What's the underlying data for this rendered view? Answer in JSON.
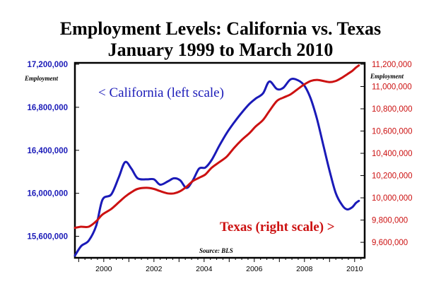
{
  "chart_data": {
    "type": "line",
    "title": "Employment Levels: California vs. Texas",
    "subtitle": "January 1999 to March 2010",
    "source": "Source: BLS",
    "y_left": {
      "label": "Employment",
      "range": [
        15420000,
        17200000
      ],
      "ticks": [
        15600000,
        16000000,
        16400000,
        16800000,
        17200000
      ],
      "tick_labels": [
        "15,600,000",
        "16,000,000",
        "16,400,000",
        "16,800,000",
        "17,200,000"
      ]
    },
    "y_right": {
      "label": "Employment",
      "range": [
        9480000,
        11200000
      ],
      "ticks": [
        9600000,
        9800000,
        10000000,
        10200000,
        10400000,
        10600000,
        10800000,
        11000000,
        11200000
      ],
      "tick_labels": [
        "9,600,000",
        "9,800,000",
        "10,000,000",
        "10,200,000",
        "10,400,000",
        "10,600,000",
        "10,800,000",
        "11,000,000",
        "11,200,000"
      ]
    },
    "x_axis": {
      "range": [
        1998.85,
        2010.4
      ],
      "ticks": [
        2000,
        2002,
        2004,
        2006,
        2008,
        2010
      ],
      "tick_labels": [
        "2000",
        "2002",
        "2004",
        "2006",
        "2008",
        "2010"
      ]
    },
    "annotations": {
      "california": "< California (left scale)",
      "texas": "Texas (right scale) >"
    },
    "grid": false,
    "series": [
      {
        "name": "California",
        "axis": "left",
        "color": "#1a1ab8",
        "x": [
          1998.85,
          1999.1,
          1999.4,
          1999.7,
          1999.95,
          2000.3,
          2000.6,
          2000.85,
          2001.1,
          2001.35,
          2001.7,
          2002.0,
          2002.25,
          2002.55,
          2002.8,
          2003.05,
          2003.3,
          2003.55,
          2003.8,
          2004.05,
          2004.3,
          2004.6,
          2004.9,
          2005.2,
          2005.5,
          2005.8,
          2006.05,
          2006.35,
          2006.6,
          2006.9,
          2007.15,
          2007.45,
          2007.75,
          2008.0,
          2008.25,
          2008.5,
          2008.75,
          2009.0,
          2009.25,
          2009.5,
          2009.7,
          2009.9,
          2010.05,
          2010.17
        ],
        "values": [
          15420000,
          15510000,
          15560000,
          15700000,
          15940000,
          15990000,
          16150000,
          16290000,
          16230000,
          16140000,
          16130000,
          16130000,
          16080000,
          16110000,
          16140000,
          16120000,
          16050000,
          16120000,
          16230000,
          16240000,
          16310000,
          16440000,
          16560000,
          16660000,
          16750000,
          16830000,
          16880000,
          16930000,
          17040000,
          16970000,
          16980000,
          17060000,
          17050000,
          17000000,
          16880000,
          16690000,
          16450000,
          16210000,
          16000000,
          15890000,
          15850000,
          15870000,
          15910000,
          15930000
        ]
      },
      {
        "name": "Texas",
        "axis": "right",
        "color": "#cc1111",
        "x": [
          1998.85,
          1999.1,
          1999.4,
          1999.7,
          1999.95,
          2000.3,
          2000.6,
          2000.85,
          2001.1,
          2001.35,
          2001.7,
          2002.0,
          2002.25,
          2002.55,
          2002.8,
          2003.05,
          2003.3,
          2003.55,
          2003.8,
          2004.05,
          2004.3,
          2004.6,
          2004.9,
          2005.2,
          2005.5,
          2005.8,
          2006.05,
          2006.35,
          2006.6,
          2006.9,
          2007.15,
          2007.45,
          2007.75,
          2008.0,
          2008.25,
          2008.5,
          2008.75,
          2009.0,
          2009.25,
          2009.5,
          2009.7,
          2009.9,
          2010.05,
          2010.17
        ],
        "values": [
          9730000,
          9740000,
          9740000,
          9790000,
          9850000,
          9900000,
          9960000,
          10010000,
          10050000,
          10080000,
          10090000,
          10080000,
          10060000,
          10040000,
          10040000,
          10060000,
          10100000,
          10150000,
          10180000,
          10210000,
          10270000,
          10320000,
          10370000,
          10450000,
          10520000,
          10580000,
          10640000,
          10700000,
          10780000,
          10870000,
          10900000,
          10930000,
          10980000,
          11020000,
          11050000,
          11060000,
          11050000,
          11040000,
          11050000,
          11080000,
          11110000,
          11140000,
          11170000,
          11190000
        ]
      }
    ]
  }
}
